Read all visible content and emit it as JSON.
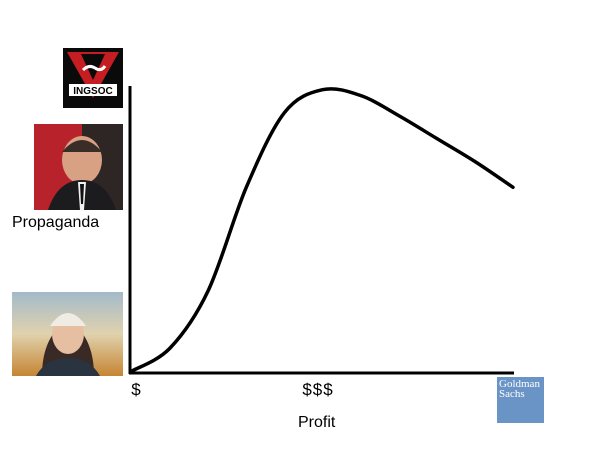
{
  "chart_data": {
    "type": "line",
    "title": "",
    "xlabel": "Profit",
    "ylabel": "Propaganda",
    "x_tick_labels": [
      "$",
      "$$$"
    ],
    "y_tick_images": [
      "ingsoc-logo",
      "portrait-man",
      "portrait-woman"
    ],
    "x_axis_end_image": "goldman-sachs-logo",
    "grid": false,
    "legend": "none",
    "line_color": "#000000",
    "curve_shape": "rises slowly, climbs steeply, peaks near the middle, then declines toward the right",
    "x": [
      0,
      10,
      20,
      30,
      40,
      50,
      60,
      70,
      80,
      90,
      100
    ],
    "y": [
      0,
      8,
      28,
      64,
      90,
      98,
      96,
      89,
      81,
      73,
      64
    ],
    "xlim": [
      0,
      100
    ],
    "ylim": [
      0,
      100
    ]
  },
  "images": {
    "ingsoc_text": "INGSOC",
    "goldman_text": "Goldman\nSachs"
  }
}
